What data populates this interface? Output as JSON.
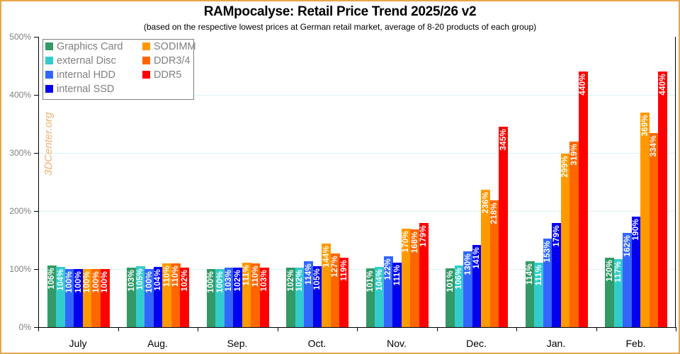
{
  "header": {
    "title": "RAMpocalyse: Retail Price Trend 2025/26 v2",
    "subtitle": "(based on the respective lowest prices at German retail market, average of 8-20 products of each group)"
  },
  "watermark": "3DCenter.org",
  "y_axis": {
    "ticks": [
      "0%",
      "100%",
      "200%",
      "300%",
      "400%",
      "500%"
    ]
  },
  "chart_data": {
    "type": "bar",
    "title": "RAMpocalyse: Retail Price Trend 2025/26 v2",
    "subtitle": "(based on the respective lowest prices at German retail market, average of 8-20 products of each group)",
    "xlabel": "",
    "ylabel": "",
    "ylim": [
      0,
      500
    ],
    "y_unit": "%",
    "grid": true,
    "legend_position": "top-left",
    "categories": [
      "July",
      "Aug.",
      "Sep.",
      "Oct.",
      "Nov.",
      "Dec.",
      "Jan.",
      "Feb."
    ],
    "series": [
      {
        "name": "Graphics Card",
        "color": "#339966",
        "values": [
          106,
          103,
          100,
          102,
          101,
          101,
          114,
          120
        ]
      },
      {
        "name": "external Disc",
        "color": "#33cccc",
        "values": [
          104,
          105,
          100,
          102,
          104,
          106,
          111,
          117
        ]
      },
      {
        "name": "internal HDD",
        "color": "#3366ff",
        "values": [
          100,
          100,
          103,
          114,
          122,
          130,
          153,
          162
        ]
      },
      {
        "name": "internal SSD",
        "color": "#0000ee",
        "values": [
          100,
          104,
          102,
          105,
          111,
          141,
          179,
          190
        ]
      },
      {
        "name": "SODIMM",
        "color": "#ff9900",
        "values": [
          100,
          110,
          111,
          144,
          170,
          236,
          299,
          369
        ]
      },
      {
        "name": "DDR3/4",
        "color": "#ff6600",
        "values": [
          100,
          110,
          110,
          127,
          168,
          218,
          319,
          334
        ]
      },
      {
        "name": "DDR5",
        "color": "#ff0000",
        "values": [
          100,
          102,
          103,
          119,
          179,
          345,
          440,
          440
        ]
      }
    ]
  }
}
